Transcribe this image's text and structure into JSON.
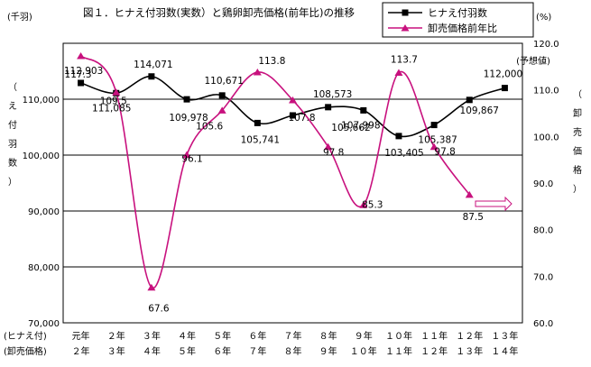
{
  "chart_data": {
    "type": "line",
    "title": "図１．ヒナえ付羽数(実数）と鶏卵卸売価格(前年比)の推移",
    "left_axis": {
      "unit": "(千羽)",
      "label": [
        "（",
        "え",
        "付",
        "羽",
        "数",
        "）"
      ],
      "ylim": [
        70000,
        120000
      ],
      "ticks": [
        70000,
        80000,
        90000,
        100000,
        110000
      ],
      "tick_labels": [
        "70,000",
        "80,000",
        "90,000",
        "100,000",
        "110,000"
      ]
    },
    "right_axis": {
      "unit": "(%)",
      "label": [
        "（",
        "卸",
        "売",
        "価",
        "格",
        "）"
      ],
      "ylim": [
        60.0,
        120.0
      ],
      "ticks": [
        60.0,
        70.0,
        80.0,
        90.0,
        100.0,
        110.0,
        120.0
      ],
      "tick_labels": [
        "60.0",
        "70.0",
        "80.0",
        "90.0",
        "100.0",
        "110.0",
        "120.0"
      ]
    },
    "x_rows": [
      {
        "label": "(ヒナえ付)",
        "ticks": [
          "元年",
          "２年",
          "３年",
          "４年",
          "５年",
          "６年",
          "７年",
          "８年",
          "９年",
          "１０年",
          "１１年",
          "１２年",
          "１３年"
        ]
      },
      {
        "label": "(卸売価格)",
        "ticks": [
          "２年",
          "３年",
          "４年",
          "５年",
          "６年",
          "７年",
          "８年",
          "９年",
          "１０年",
          "１１年",
          "１２年",
          "１３年",
          "１４年"
        ]
      }
    ],
    "series": [
      {
        "name": "ヒナえ付羽数",
        "axis": "left",
        "color": "#000000",
        "marker": "square",
        "values": [
          112903,
          111085,
          114071,
          109978,
          110671,
          105741,
          107100,
          108573,
          107998,
          103405,
          105387,
          109867,
          112000
        ],
        "labels": [
          "112,903",
          "111,085",
          "114,071",
          "109,978",
          "110,671",
          "105,741",
          "",
          "108,573",
          "107,998",
          "103,405",
          "105,387",
          "109,867",
          "112,000"
        ]
      },
      {
        "name": "卸売価格前年比",
        "axis": "right",
        "color": "#c8117e",
        "marker": "triangle",
        "values": [
          117.3,
          109.5,
          67.6,
          96.1,
          105.6,
          113.8,
          107.8,
          97.8,
          85.3,
          113.7,
          97.8,
          87.5
        ],
        "labels": [
          "117.3",
          "109.5",
          "67.6",
          "96.1",
          "105.6",
          "113.8",
          "107.8",
          "97.8",
          "85.3",
          "113.7",
          "97.8",
          "87.5"
        ]
      }
    ],
    "extra_labels": {
      "forecast": "(予想値)",
      "second_label_105662": "105,662"
    },
    "grid": {
      "horizontal": true,
      "vertical": false
    }
  }
}
